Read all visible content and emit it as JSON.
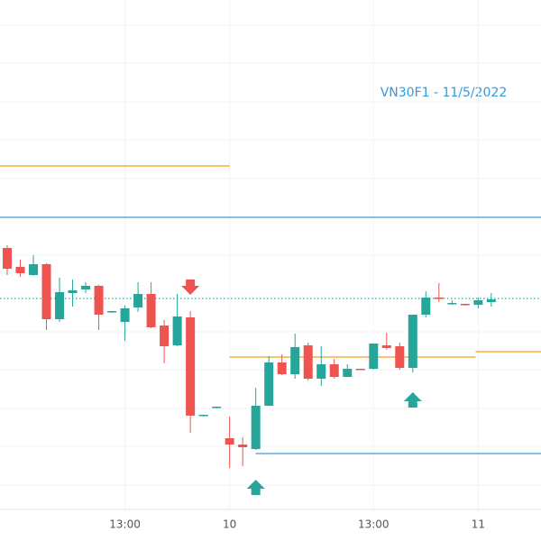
{
  "chart_data": {
    "type": "candlestick",
    "title": "VN30F1 - 11/5/2022",
    "up_color": "#26a69a",
    "down_color": "#ef5350",
    "xlim": [
      -0.55,
      40.8
    ],
    "ylim": [
      0,
      600
    ],
    "xticks": [
      {
        "value": 9,
        "label": "13:00"
      },
      {
        "value": 17,
        "label": "10"
      },
      {
        "value": 28,
        "label": "13:00"
      },
      {
        "value": 36,
        "label": "11"
      }
    ],
    "open": [
      325,
      304,
      295,
      307,
      246,
      275,
      279,
      283,
      254,
      243,
      259,
      274,
      239,
      217,
      248,
      139,
      148,
      114,
      107,
      102,
      150,
      198,
      185,
      217,
      180,
      196,
      182,
      191,
      191,
      217,
      216,
      192,
      251,
      270,
      264,
      263,
      262,
      265
    ],
    "high": [
      328,
      312,
      317,
      308,
      292,
      290,
      287,
      284,
      255,
      261,
      287,
      287,
      245,
      274,
      255,
      140,
      149,
      138,
      115,
      170,
      205,
      207,
      230,
      220,
      216,
      202,
      196,
      191,
      219,
      231,
      220,
      251,
      277,
      286,
      267,
      263,
      270,
      275
    ],
    "low": [
      295,
      293,
      294,
      234,
      243,
      260,
      275,
      234,
      253,
      222,
      254,
      236,
      197,
      216,
      120,
      138,
      147,
      81,
      83,
      101,
      150,
      184,
      180,
      178,
      172,
      180,
      182,
      190,
      190,
      212,
      190,
      187,
      248,
      265,
      262,
      261,
      258,
      260
    ],
    "close": [
      302,
      297,
      307,
      246,
      276,
      278,
      283,
      251,
      255,
      258,
      274,
      237,
      216,
      249,
      139,
      140,
      149,
      107,
      104,
      150,
      198,
      185,
      215,
      180,
      196,
      182,
      191,
      190,
      219,
      214,
      192,
      251,
      270,
      269,
      264,
      262,
      267,
      268
    ],
    "levels": [
      {
        "value": 416,
        "color": "#f59c1a",
        "from": -0.55,
        "to": 17
      },
      {
        "value": 359,
        "color": "#3d9bd6",
        "from": -0.55,
        "to": 40.8
      },
      {
        "value": 269,
        "color": "#26a69a",
        "from": -0.55,
        "to": 40.8,
        "dotted": true
      },
      {
        "value": 204,
        "color": "#f59c1a",
        "from": 17,
        "to": 35.8
      },
      {
        "value": 210,
        "color": "#f59c1a",
        "from": 35.8,
        "to": 40.8
      },
      {
        "value": 97,
        "color": "#3d9bd6",
        "from": 19,
        "to": 40.8
      }
    ],
    "signals": [
      {
        "x": 14,
        "value": 278,
        "direction": "down",
        "color": "#ef5350"
      },
      {
        "x": 19,
        "value": 63,
        "direction": "up",
        "color": "#26a69a"
      },
      {
        "x": 31,
        "value": 160,
        "direction": "up",
        "color": "#26a69a"
      }
    ]
  }
}
